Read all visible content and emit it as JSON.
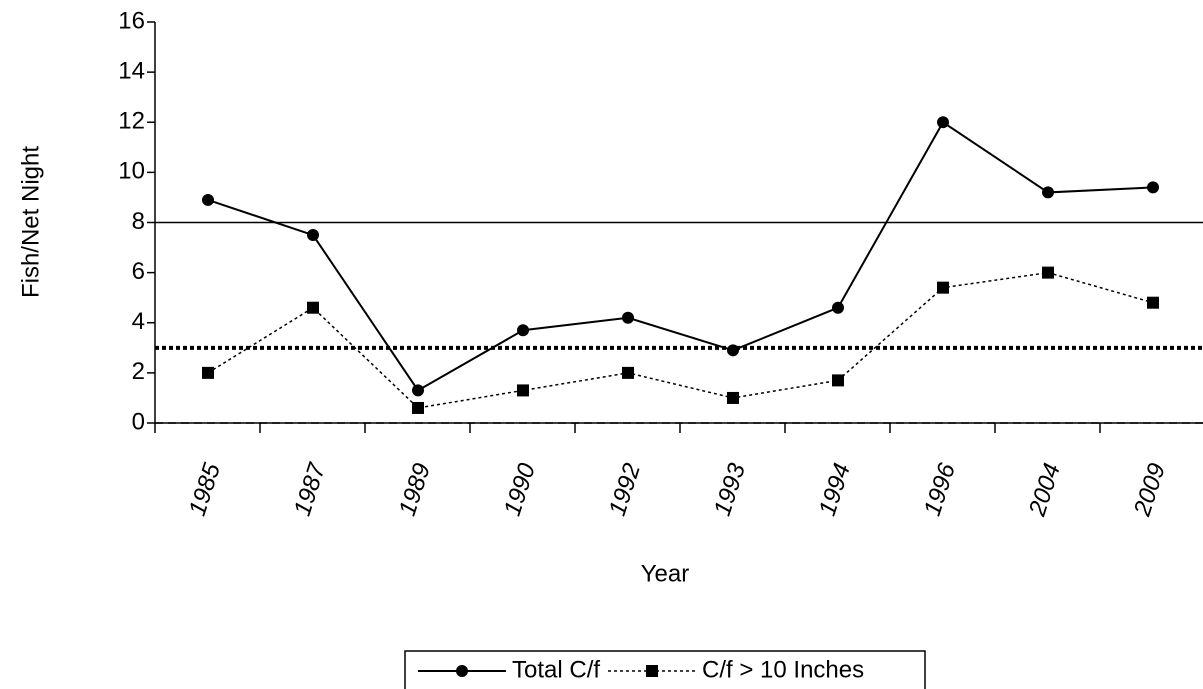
{
  "chart_data": {
    "type": "line",
    "x_label": "Year",
    "y_label": "Fish/Net Night",
    "categories": [
      "1985",
      "1987",
      "1989",
      "1990",
      "1992",
      "1993",
      "1994",
      "1996",
      "2004",
      "2009"
    ],
    "series": [
      {
        "name": "Total C/f",
        "color": "#000000",
        "marker": "circle",
        "dash": "solid",
        "values": [
          8.9,
          7.5,
          1.3,
          3.7,
          4.2,
          2.9,
          4.6,
          12.0,
          9.2,
          9.4
        ]
      },
      {
        "name": "C/f > 10 Inches",
        "color": "#000000",
        "marker": "square",
        "dash": "dotted",
        "values": [
          2.0,
          4.6,
          0.6,
          1.3,
          2.0,
          1.0,
          1.7,
          5.4,
          6.0,
          4.8
        ]
      }
    ],
    "reference_lines": [
      {
        "value": 8,
        "dash": "solid"
      },
      {
        "value": 3,
        "dash": "dotted"
      },
      {
        "value": 0,
        "dash": "dashed"
      }
    ],
    "ylim": [
      0,
      16
    ],
    "yticks": [
      0,
      2,
      4,
      6,
      8,
      10,
      12,
      14,
      16
    ],
    "legend": "bottom"
  }
}
